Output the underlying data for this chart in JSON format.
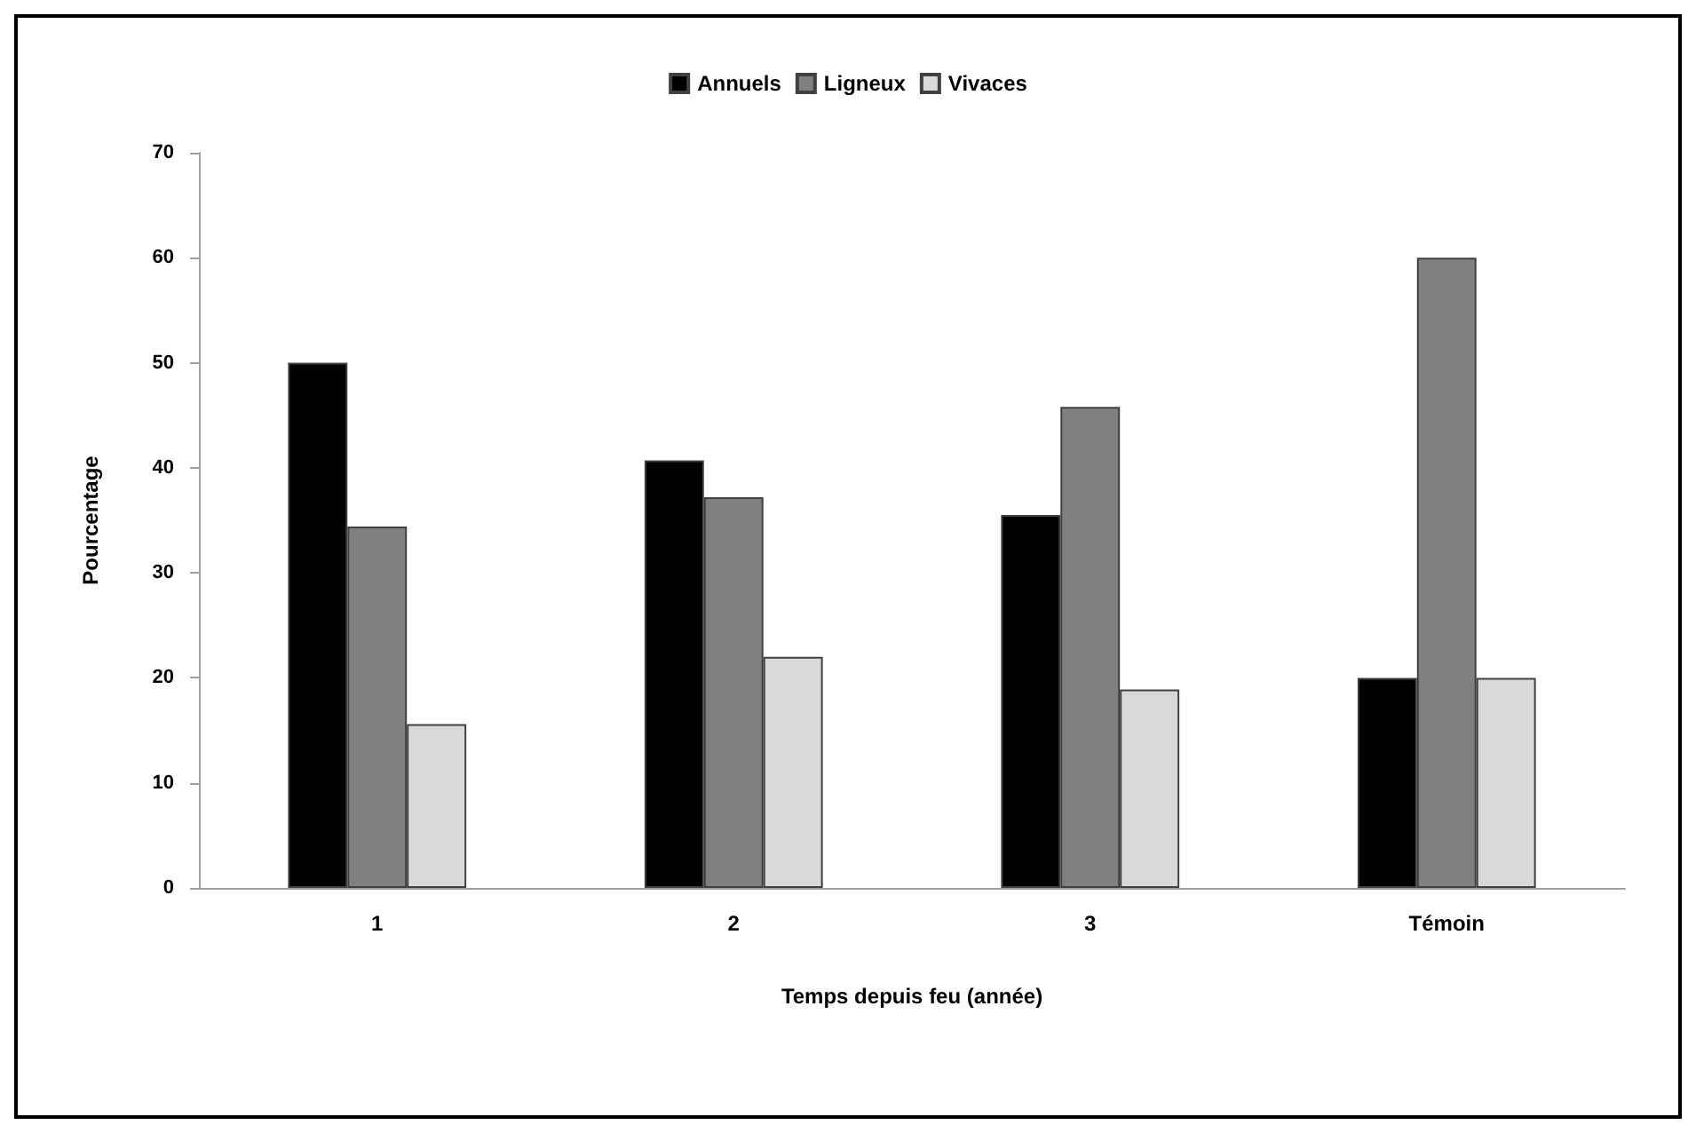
{
  "chart_data": {
    "type": "bar",
    "xlabel": "Temps depuis feu (année)",
    "ylabel": "Pourcentage",
    "categories": [
      "1",
      "2",
      "3",
      "Témoin"
    ],
    "series": [
      {
        "name": "Annuels",
        "color": "#000000",
        "values": [
          50,
          40.7,
          35.5,
          20
        ]
      },
      {
        "name": "Ligneux",
        "color": "#808080",
        "values": [
          34.4,
          37.2,
          45.8,
          60
        ]
      },
      {
        "name": "Vivaces",
        "color": "#d9d9d9",
        "values": [
          15.6,
          22,
          18.9,
          20
        ]
      }
    ],
    "ylim": [
      0,
      70
    ],
    "yticks": [
      0,
      10,
      20,
      30,
      40,
      50,
      60,
      70
    ],
    "grid": false,
    "legend": "top"
  }
}
